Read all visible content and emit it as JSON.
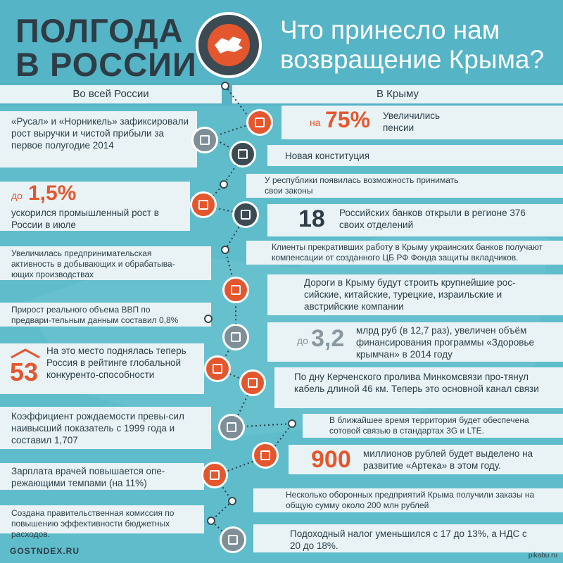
{
  "header": {
    "title_line1": "ПОЛГОДА",
    "title_line2": "В РОССИИ",
    "subtitle_line1": "Что принесло нам",
    "subtitle_line2": "возвращение Крыма?"
  },
  "columns": {
    "left": "Во всей России",
    "right": "В Крыму"
  },
  "left_items": [
    {
      "text": "«Русал» и «Норникель» зафиксировали рост выручки и чистой прибыли за первое полугодие 2014"
    },
    {
      "prefix": "до",
      "value": "1,5%",
      "text": "ускорился промышленный рост в России в июле"
    },
    {
      "text": "Увеличилась предпринимательская активность в добывающих и обрабатыва-ющих производствах"
    },
    {
      "text": "Прирост реального объема ВВП по предвари-тельным данным составил 0,8%"
    },
    {
      "value": "53",
      "text": "На это место поднялась теперь Россия в рейтинге глобальной конкуренто-способности"
    },
    {
      "text": "Коэффициент рождаемости превы-сил наивысший показатель с 1999 года и составил 1,707"
    },
    {
      "text": "Зарплата врачей повышается опе-режающими темпами (на 11%)"
    },
    {
      "text": "Создана правительственная комиссия по повышению эффективности бюджетных расходов."
    }
  ],
  "right_items": [
    {
      "prefix": "на",
      "value": "75%",
      "text": "Увеличились пенсии"
    },
    {
      "text": "Новая конституция"
    },
    {
      "text": "У республики появилась возможность принимать свои законы"
    },
    {
      "value": "18",
      "text": "Российских банков открыли в регионе 376 своих отделений"
    },
    {
      "text": "Клиенты прекративших работу в Крыму украинских банков получают компенсации от созданного ЦБ РФ Фонда защиты вкладчиков."
    },
    {
      "text": "Дороги в Крыму будут строить крупнейшие рос-сийские, китайские, турецкие, израильские и австрийские компании"
    },
    {
      "prefix": "до",
      "value": "3,2",
      "text": "млрд руб (в 12,7 раз), увеличен объём финансирования программы «Здоровье крымчан» в 2014 году"
    },
    {
      "text": "По дну Керченского пролива Минкомсвязи про-тянул кабель длиной 46 км. Теперь это основной канал связи"
    },
    {
      "text": "В ближайшее время территория будет обеспечена сотовой связью в стандартах 3G и LTE."
    },
    {
      "value": "900",
      "text": "миллионов рублей будет выделено на развитие «Артека» в этом году."
    },
    {
      "text": "Несколько оборонных предприятий Крыма получили заказы на общую сумму около 200 млн рублей"
    },
    {
      "text": "Подоходный налог уменьшился с 17 до 13%, а НДС с 20 до 18%."
    }
  ],
  "footer": {
    "brand": "GOSTNDEX.RU",
    "watermark": "pikabu.ru"
  },
  "colors": {
    "background": "#54b3c4",
    "accent": "#e4572e",
    "dark": "#2e3c46",
    "band": "#e9f3f5"
  }
}
